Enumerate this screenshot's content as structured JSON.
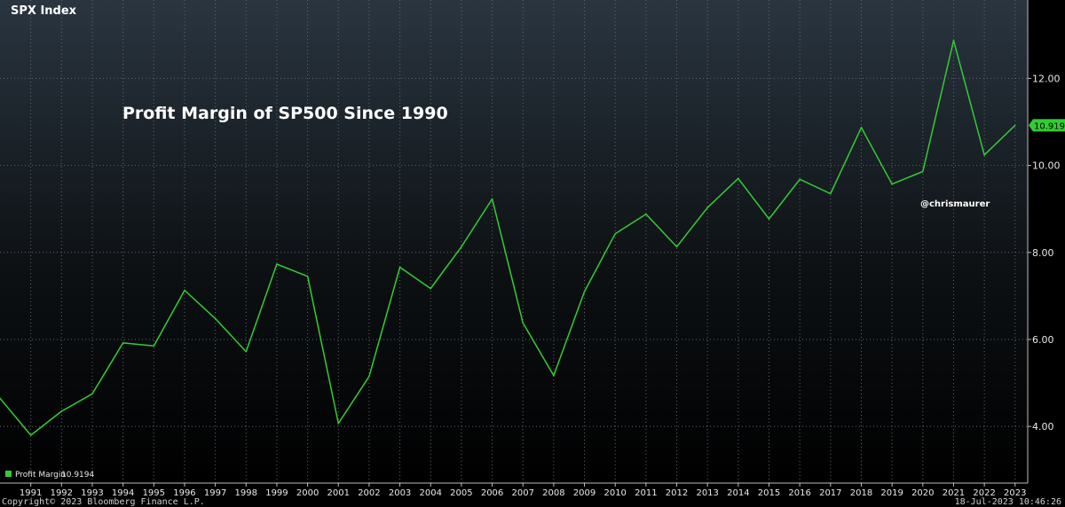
{
  "header": {
    "index_label": "SPX Index",
    "chart_title": "Profit Margin of SP500 Since 1990",
    "author_handle": "@chrismaurer"
  },
  "legend": {
    "series_label": "Profit Margin",
    "series_value": "10.9194"
  },
  "last_value_tag": "10.9194",
  "footer": {
    "copyright": "Copyright© 2023 Bloomberg Finance L.P.",
    "timestamp": "18-Jul-2023 10:46:26"
  },
  "colors": {
    "line": "#33cc33",
    "background_top": "#2a3540",
    "background_bottom": "#000000",
    "gridline": "#666666"
  },
  "chart_data": {
    "type": "line",
    "title": "Profit Margin of SP500 Since 1990",
    "xlabel": "",
    "ylabel": "",
    "x": [
      1990,
      1991,
      1992,
      1993,
      1994,
      1995,
      1996,
      1997,
      1998,
      1999,
      2000,
      2001,
      2002,
      2003,
      2004,
      2005,
      2006,
      2007,
      2008,
      2009,
      2010,
      2011,
      2012,
      2013,
      2014,
      2015,
      2016,
      2017,
      2018,
      2019,
      2020,
      2021,
      2022,
      2023
    ],
    "x_tick_labels": [
      "1991",
      "1992",
      "1993",
      "1994",
      "1995",
      "1996",
      "1997",
      "1998",
      "1999",
      "2000",
      "2001",
      "2002",
      "2003",
      "2004",
      "2005",
      "2006",
      "2007",
      "2008",
      "2009",
      "2010",
      "2011",
      "2012",
      "2013",
      "2014",
      "2015",
      "2016",
      "2017",
      "2018",
      "2019",
      "2020",
      "2021",
      "2022",
      "2023"
    ],
    "y_ticks": [
      4,
      6,
      8,
      10,
      12
    ],
    "y_tick_labels": [
      "4.00",
      "6.00",
      "8.00",
      "10.00",
      "12.00"
    ],
    "ylim": [
      2.7,
      13.8
    ],
    "xlim": [
      1990,
      2024
    ],
    "grid": true,
    "legend_position": "bottom-left",
    "y_axis_side": "right",
    "series": [
      {
        "name": "Profit Margin",
        "values": [
          4.65,
          3.8,
          4.35,
          4.75,
          5.92,
          5.85,
          7.13,
          6.48,
          5.72,
          7.73,
          7.45,
          4.07,
          5.15,
          7.66,
          7.17,
          8.13,
          9.23,
          6.38,
          5.17,
          7.1,
          8.43,
          8.88,
          8.13,
          9.03,
          9.7,
          8.77,
          9.68,
          9.35,
          10.87,
          9.57,
          9.86,
          12.87,
          10.24,
          10.92
        ]
      }
    ]
  }
}
